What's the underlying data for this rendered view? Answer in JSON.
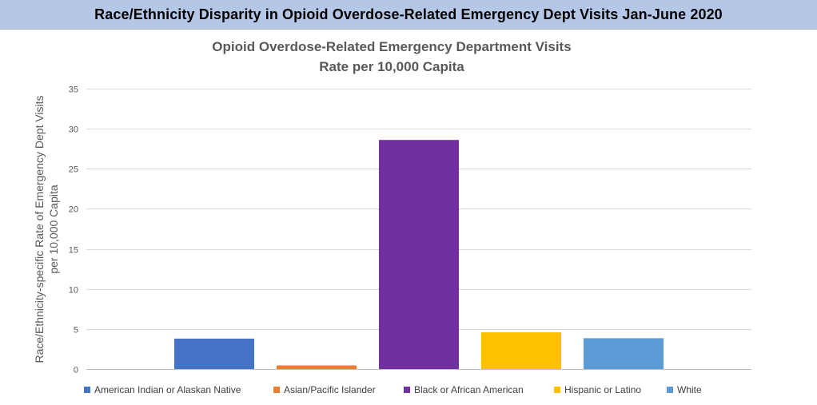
{
  "banner": {
    "title": "Race/Ethnicity Disparity in Opioid Overdose-Related Emergency Dept Visits Jan-June 2020"
  },
  "chart_data": {
    "type": "bar",
    "title": "Opioid Overdose-Related Emergency Department Visits",
    "subtitle": "Rate per 10,000 Capita",
    "xlabel": "",
    "ylabel": "Race/Ethnicity-specific Rate of Emergency Dept Visits per 10,000 Capita",
    "ylabel_lines": [
      "Race/Ethnicity-specific Rate of Emergency Dept Visits",
      "per 10,000 Capita"
    ],
    "ylim": [
      0,
      35
    ],
    "yticks": [
      0,
      5,
      10,
      15,
      20,
      25,
      30,
      35
    ],
    "grid": true,
    "legend_position": "bottom",
    "series": [
      {
        "name": "American Indian or Alaskan Native",
        "value": 3.8,
        "color": "#4472c4"
      },
      {
        "name": "Asian/Pacific Islander",
        "value": 0.45,
        "color": "#ed7d31"
      },
      {
        "name": "Black or African American",
        "value": 28.6,
        "color": "#7030a0"
      },
      {
        "name": "Hispanic or Latino",
        "value": 4.6,
        "color": "#ffc000"
      },
      {
        "name": "White",
        "value": 3.85,
        "color": "#5b9bd5"
      }
    ]
  }
}
